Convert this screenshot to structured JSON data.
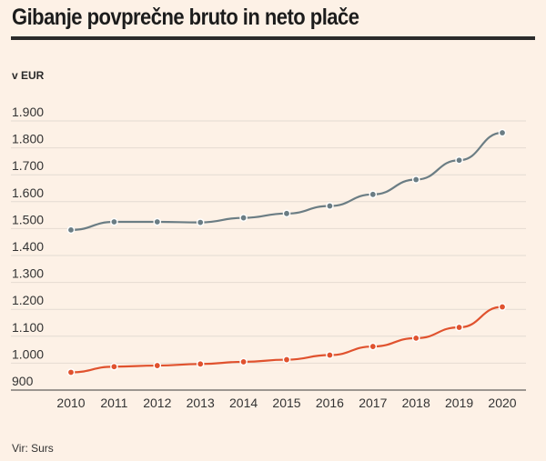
{
  "title": "Gibanje povprečne bruto in neto plače",
  "unit_label": "v EUR",
  "source": "Vir: Surs",
  "chart_data": {
    "type": "line",
    "title": "Gibanje povprečne bruto in neto plače",
    "ylabel": "v EUR",
    "xlabel": "",
    "x": [
      2010,
      2011,
      2012,
      2013,
      2014,
      2015,
      2016,
      2017,
      2018,
      2019,
      2020
    ],
    "ylim": [
      900,
      1900
    ],
    "yticks": [
      900,
      1000,
      1100,
      1200,
      1300,
      1400,
      1500,
      1600,
      1700,
      1800,
      1900
    ],
    "ytick_labels": [
      "900",
      "1.000",
      "1.100",
      "1.200",
      "1.300",
      "1.400",
      "1.500",
      "1.600",
      "1.700",
      "1.800",
      "1.900"
    ],
    "grid": true,
    "legend": "none",
    "series": [
      {
        "color": "#6b7d84",
        "values": [
          1495,
          1525,
          1525,
          1523,
          1540,
          1556,
          1584,
          1627,
          1682,
          1754,
          1856
        ]
      },
      {
        "color": "#e0522e",
        "values": [
          966,
          987,
          991,
          997,
          1005,
          1013,
          1030,
          1062,
          1093,
          1133,
          1209
        ]
      }
    ]
  }
}
